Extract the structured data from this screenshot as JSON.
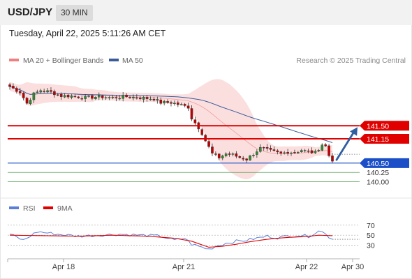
{
  "header": {
    "symbol": "USD/JPY",
    "timeframe": "30 MIN"
  },
  "datetime": "Tuesday, April 22, 2025 5:11:26 AM CET",
  "legend": {
    "ma20_bb": "MA 20 + Bollinger Bands",
    "ma50": "MA 50",
    "copyright": "Research © 2025 Trading Central",
    "rsi": "RSI",
    "rsi_ma": "9MA"
  },
  "colors": {
    "resistance": "#e00000",
    "support": "#1a4fc8",
    "target": "#2e8b2e",
    "ma20_band": "#f8c4c4",
    "ma20_line": "#f08080",
    "ma50": "#3a5a98",
    "bull": "#2e8b2e",
    "bear": "#c00000",
    "arrow": "#2f5fa0",
    "rsi_line": "#5b7fd6",
    "rsi_ma_line": "#e00000"
  },
  "chart_data": [
    {
      "type": "candlestick",
      "title": "USD/JPY 30 MIN",
      "x_ticks": [
        "Apr 18",
        "Apr 21",
        "Apr 22",
        "Apr 30"
      ],
      "ylim": [
        139.6,
        143.0
      ],
      "levels": [
        {
          "label": "141.50",
          "value": 141.5,
          "kind": "resistance"
        },
        {
          "label": "141.15",
          "value": 141.15,
          "kind": "resistance"
        },
        {
          "label": "140.50",
          "value": 140.5,
          "kind": "support"
        },
        {
          "label": "140.25",
          "value": 140.25,
          "kind": "target"
        },
        {
          "label": "140.00",
          "value": 140.0,
          "kind": "target"
        }
      ],
      "last_price": 140.55,
      "forecast_arrow": {
        "from": 140.55,
        "to": 141.5,
        "direction": "up"
      },
      "series": [
        {
          "name": "MA 20 + Bollinger Bands",
          "type": "band"
        },
        {
          "name": "MA 50",
          "type": "line"
        }
      ],
      "anchors": [
        [
          0,
          142.55
        ],
        [
          3,
          142.4
        ],
        [
          5,
          142.1
        ],
        [
          7,
          142.35
        ],
        [
          9,
          142.45
        ],
        [
          12,
          142.4
        ],
        [
          15,
          142.3
        ],
        [
          18,
          142.3
        ],
        [
          22,
          142.25
        ],
        [
          26,
          142.28
        ],
        [
          30,
          142.25
        ],
        [
          34,
          142.28
        ],
        [
          38,
          142.25
        ],
        [
          42,
          142.22
        ],
        [
          44,
          142.12
        ],
        [
          47,
          142.12
        ],
        [
          50,
          142.05
        ],
        [
          52,
          142.0
        ],
        [
          53,
          141.7
        ],
        [
          55,
          141.45
        ],
        [
          56,
          141.3
        ],
        [
          57,
          141.1
        ],
        [
          59,
          140.75
        ],
        [
          61,
          140.65
        ],
        [
          63,
          140.75
        ],
        [
          65,
          140.72
        ],
        [
          67,
          140.65
        ],
        [
          69,
          140.6
        ],
        [
          71,
          140.75
        ],
        [
          73,
          140.9
        ],
        [
          75,
          140.85
        ],
        [
          77,
          140.8
        ],
        [
          79,
          140.75
        ],
        [
          81,
          140.8
        ],
        [
          83,
          140.78
        ],
        [
          85,
          140.85
        ],
        [
          87,
          140.8
        ],
        [
          89,
          140.78
        ],
        [
          91,
          141.0
        ],
        [
          92,
          140.95
        ],
        [
          93,
          140.7
        ],
        [
          94,
          140.55
        ]
      ],
      "n_candles": 95
    },
    {
      "type": "line",
      "title": "RSI",
      "y_ticks": [
        70,
        50,
        30
      ],
      "ylim": [
        10,
        85
      ],
      "series": [
        {
          "name": "RSI",
          "anchors": [
            [
              0,
              52
            ],
            [
              4,
              40
            ],
            [
              8,
              57
            ],
            [
              14,
              52
            ],
            [
              20,
              48
            ],
            [
              26,
              50
            ],
            [
              32,
              52
            ],
            [
              38,
              50
            ],
            [
              44,
              48
            ],
            [
              48,
              40
            ],
            [
              51,
              44
            ],
            [
              53,
              32
            ],
            [
              56,
              26
            ],
            [
              58,
              22
            ],
            [
              60,
              28
            ],
            [
              63,
              34
            ],
            [
              66,
              38
            ],
            [
              69,
              40
            ],
            [
              72,
              44
            ],
            [
              75,
              48
            ],
            [
              78,
              45
            ],
            [
              81,
              48
            ],
            [
              84,
              50
            ],
            [
              87,
              48
            ],
            [
              90,
              58
            ],
            [
              92,
              55
            ],
            [
              93,
              46
            ],
            [
              94,
              42
            ]
          ]
        },
        {
          "name": "9MA",
          "anchors": [
            [
              0,
              50
            ],
            [
              10,
              49
            ],
            [
              20,
              48
            ],
            [
              30,
              50
            ],
            [
              40,
              48
            ],
            [
              48,
              44
            ],
            [
              53,
              38
            ],
            [
              58,
              26
            ],
            [
              62,
              28
            ],
            [
              66,
              32
            ],
            [
              70,
              37
            ],
            [
              74,
              41
            ],
            [
              78,
              44
            ],
            [
              82,
              46
            ],
            [
              86,
              47
            ],
            [
              90,
              50
            ],
            [
              94,
              49
            ]
          ]
        }
      ]
    }
  ]
}
